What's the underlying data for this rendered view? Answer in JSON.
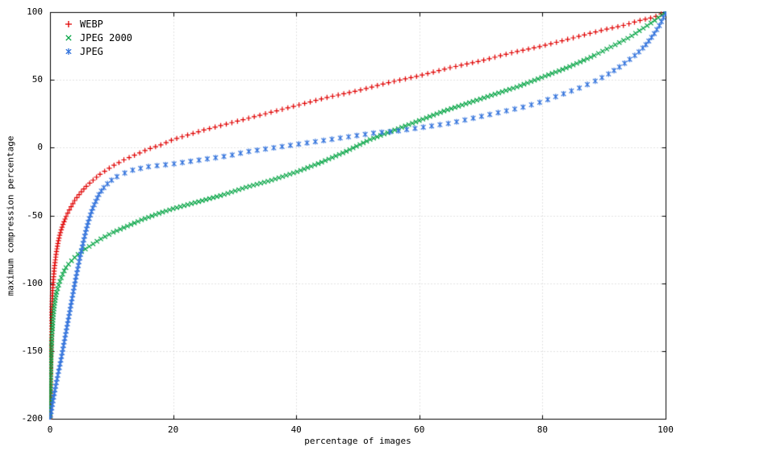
{
  "chart_data": {
    "type": "scatter",
    "title": "",
    "xlabel": "percentage of images",
    "ylabel": "maximum compression percentage",
    "xlim": [
      0,
      100
    ],
    "ylim": [
      -200,
      100
    ],
    "xticks": [
      0,
      20,
      40,
      60,
      80,
      100
    ],
    "yticks": [
      -200,
      -150,
      -100,
      -50,
      0,
      50,
      100
    ],
    "grid": true,
    "legend_position": "top-left",
    "background_color": "#ffffff",
    "axis_color": "#000000",
    "grid_color": "#c4c4c4",
    "series": [
      {
        "name": "WEBP",
        "marker": "plus",
        "color": "#e00000",
        "points": [
          [
            0,
            -200
          ],
          [
            0.05,
            -180
          ],
          [
            0.1,
            -160
          ],
          [
            0.15,
            -145
          ],
          [
            0.2,
            -133
          ],
          [
            0.3,
            -118
          ],
          [
            0.4,
            -108
          ],
          [
            0.5,
            -100
          ],
          [
            0.7,
            -89
          ],
          [
            1,
            -78
          ],
          [
            1.3,
            -70
          ],
          [
            1.6,
            -64
          ],
          [
            2,
            -58
          ],
          [
            2.5,
            -52
          ],
          [
            3,
            -47
          ],
          [
            3.5,
            -43
          ],
          [
            4,
            -39
          ],
          [
            5,
            -33
          ],
          [
            6,
            -28
          ],
          [
            7,
            -24
          ],
          [
            8,
            -20
          ],
          [
            9,
            -17
          ],
          [
            10,
            -14
          ],
          [
            12,
            -9
          ],
          [
            14,
            -5
          ],
          [
            16,
            -1
          ],
          [
            18,
            2
          ],
          [
            20,
            6
          ],
          [
            25,
            13
          ],
          [
            30,
            19
          ],
          [
            35,
            25
          ],
          [
            40,
            31
          ],
          [
            45,
            37
          ],
          [
            50,
            42
          ],
          [
            55,
            48
          ],
          [
            60,
            53
          ],
          [
            65,
            59
          ],
          [
            70,
            64
          ],
          [
            75,
            70
          ],
          [
            80,
            75
          ],
          [
            85,
            81
          ],
          [
            90,
            87
          ],
          [
            93,
            90
          ],
          [
            96,
            94
          ],
          [
            98,
            96
          ],
          [
            100,
            100
          ]
        ]
      },
      {
        "name": "JPEG 2000",
        "marker": "cross",
        "color": "#00a342",
        "points": [
          [
            0,
            -200
          ],
          [
            0.05,
            -185
          ],
          [
            0.1,
            -170
          ],
          [
            0.2,
            -152
          ],
          [
            0.3,
            -140
          ],
          [
            0.5,
            -126
          ],
          [
            0.7,
            -117
          ],
          [
            1,
            -108
          ],
          [
            1.5,
            -100
          ],
          [
            2,
            -94
          ],
          [
            2.5,
            -89
          ],
          [
            3,
            -86
          ],
          [
            4,
            -81
          ],
          [
            5,
            -77
          ],
          [
            6,
            -74
          ],
          [
            8,
            -68
          ],
          [
            10,
            -63
          ],
          [
            12,
            -59
          ],
          [
            15,
            -53
          ],
          [
            18,
            -48
          ],
          [
            20,
            -45
          ],
          [
            24,
            -40
          ],
          [
            28,
            -35
          ],
          [
            32,
            -29
          ],
          [
            36,
            -24
          ],
          [
            40,
            -18
          ],
          [
            44,
            -11
          ],
          [
            48,
            -3
          ],
          [
            52,
            6
          ],
          [
            56,
            13
          ],
          [
            60,
            20
          ],
          [
            64,
            27
          ],
          [
            68,
            33
          ],
          [
            72,
            39
          ],
          [
            76,
            45
          ],
          [
            80,
            52
          ],
          [
            84,
            59
          ],
          [
            88,
            67
          ],
          [
            91,
            74
          ],
          [
            94,
            81
          ],
          [
            96,
            87
          ],
          [
            98,
            93
          ],
          [
            100,
            100
          ]
        ]
      },
      {
        "name": "JPEG",
        "marker": "asterisk",
        "color": "#3373dc",
        "points": [
          [
            0,
            -200
          ],
          [
            0.3,
            -192
          ],
          [
            0.6,
            -184
          ],
          [
            1,
            -174
          ],
          [
            1.4,
            -165
          ],
          [
            1.8,
            -156
          ],
          [
            2.2,
            -146
          ],
          [
            2.6,
            -136
          ],
          [
            3,
            -126
          ],
          [
            3.4,
            -116
          ],
          [
            3.8,
            -106
          ],
          [
            4.2,
            -96
          ],
          [
            4.6,
            -87
          ],
          [
            5,
            -78
          ],
          [
            5.4,
            -70
          ],
          [
            5.8,
            -62
          ],
          [
            6.2,
            -55
          ],
          [
            6.6,
            -49
          ],
          [
            7,
            -44
          ],
          [
            7.5,
            -39
          ],
          [
            8,
            -34
          ],
          [
            8.5,
            -31
          ],
          [
            9,
            -28
          ],
          [
            10,
            -24
          ],
          [
            11,
            -21
          ],
          [
            12,
            -19
          ],
          [
            13,
            -17
          ],
          [
            14,
            -16
          ],
          [
            16,
            -14
          ],
          [
            18,
            -13
          ],
          [
            20,
            -12
          ],
          [
            23,
            -10
          ],
          [
            26,
            -8
          ],
          [
            29,
            -6
          ],
          [
            32,
            -3
          ],
          [
            35,
            -1
          ],
          [
            38,
            1
          ],
          [
            41,
            3
          ],
          [
            44,
            5
          ],
          [
            47,
            7
          ],
          [
            50,
            9
          ],
          [
            53,
            11
          ],
          [
            56,
            12
          ],
          [
            59,
            14
          ],
          [
            62,
            16
          ],
          [
            65,
            18
          ],
          [
            68,
            21
          ],
          [
            71,
            24
          ],
          [
            74,
            27
          ],
          [
            77,
            30
          ],
          [
            80,
            34
          ],
          [
            83,
            39
          ],
          [
            86,
            44
          ],
          [
            89,
            50
          ],
          [
            91,
            55
          ],
          [
            93,
            61
          ],
          [
            95,
            68
          ],
          [
            96,
            72
          ],
          [
            97,
            77
          ],
          [
            98,
            83
          ],
          [
            99,
            90
          ],
          [
            100,
            99
          ]
        ]
      }
    ]
  }
}
